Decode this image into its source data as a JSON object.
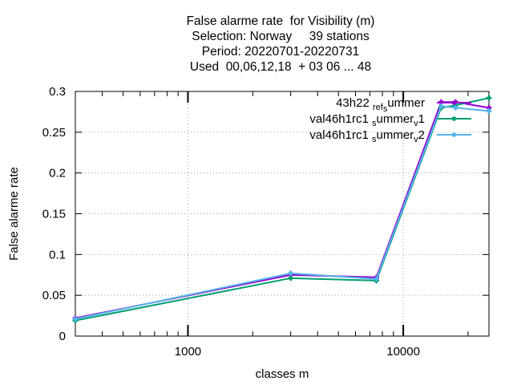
{
  "chart_data": {
    "type": "line",
    "title_lines": [
      "False alarme rate  for Visibility (m)",
      "Selection: Norway     39 stations",
      "Period: 20220701-20220731",
      "Used  00,06,12,18  + 03 06 ... 48"
    ],
    "xlabel": "classes m",
    "ylabel": "False alarme rate",
    "x_scale": "log",
    "xlim": [
      300,
      25000
    ],
    "ylim": [
      0,
      0.3
    ],
    "x_ticks": [
      1000,
      10000
    ],
    "x_tick_labels": [
      "1000",
      "10000"
    ],
    "y_ticks": [
      0,
      0.05,
      0.1,
      0.15,
      0.2,
      0.25,
      0.3
    ],
    "y_tick_labels": [
      "0",
      "0.05",
      "0.1",
      "0.15",
      "0.2",
      "0.25",
      "0.3"
    ],
    "grid": true,
    "legend_position": "top-right",
    "series": [
      {
        "legend_parts": [
          "43h22",
          "ref",
          "s",
          "ummer"
        ],
        "color": "#9400d3",
        "x": [
          300,
          3000,
          7500,
          15000,
          17500,
          25000
        ],
        "y": [
          0.022,
          0.075,
          0.072,
          0.287,
          0.287,
          0.28
        ]
      },
      {
        "legend_parts": [
          "val46h1rc1",
          "s",
          "ummer",
          "v",
          "1"
        ],
        "color": "#009e73",
        "x": [
          300,
          3000,
          7500,
          15000,
          17500,
          25000
        ],
        "y": [
          0.019,
          0.071,
          0.068,
          0.28,
          0.283,
          0.292
        ]
      },
      {
        "legend_parts": [
          "val46h1rc1",
          "s",
          "ummer",
          "v",
          "2"
        ],
        "color": "#56b4e9",
        "x": [
          300,
          3000,
          7500,
          15000,
          17500,
          25000
        ],
        "y": [
          0.021,
          0.077,
          0.07,
          0.282,
          0.28,
          0.276
        ]
      }
    ]
  }
}
